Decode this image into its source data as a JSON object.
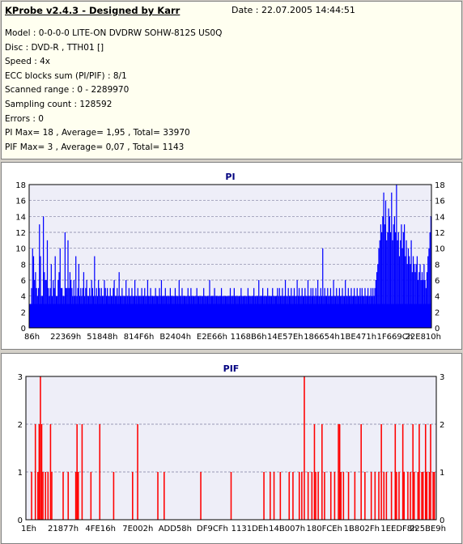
{
  "header": {
    "title": "KProbe v2.4.3 - Designed by Karr",
    "date": "Date : 22.07.2005 14:44:51"
  },
  "info_lines": [
    "Model : 0-0-0-0 LITE-ON DVDRW SOHW-812S  US0Q",
    "Disc : DVD-R , TTH01 []",
    "Speed : 4x",
    "ECC blocks sum (PI/PIF) : 8/1",
    "Scanned range : 0 - 2289970",
    "Sampling count : 128592",
    "Errors : 0",
    "PI Max= 18 , Average= 1,95 , Total= 33970",
    "PIF Max= 3 , Average= 0,07 , Total= 1143"
  ],
  "colors": {
    "pi": "#0000ff",
    "pif": "#ff0000",
    "plot_bg": "#eeeef8",
    "grid": "#8080a0",
    "title": "#000080"
  },
  "chart_data": [
    {
      "type": "bar",
      "title": "PI",
      "ylim": [
        0,
        18
      ],
      "yticks": [
        0,
        2,
        4,
        6,
        8,
        10,
        12,
        14,
        16,
        18
      ],
      "grid": true,
      "xtick_labels": [
        "86h",
        "22369h",
        "51848h",
        "814F6h",
        "B2404h",
        "E2E66h",
        "1168B6h",
        "14E57Eh",
        "186654h",
        "1BE471h",
        "1F669Ch",
        "22E810h"
      ],
      "baseline_y": 3,
      "values": [
        3,
        2,
        5,
        10,
        9,
        6,
        7,
        5,
        4,
        5,
        13,
        9,
        4,
        4,
        14,
        7,
        6,
        6,
        11,
        5,
        4,
        5,
        8,
        4,
        6,
        5,
        9,
        4,
        4,
        6,
        7,
        10,
        5,
        5,
        4,
        4,
        12,
        5,
        5,
        11,
        5,
        7,
        6,
        5,
        4,
        6,
        4,
        9,
        4,
        5,
        8,
        4,
        5,
        4,
        5,
        7,
        4,
        5,
        6,
        4,
        4,
        5,
        4,
        6,
        5,
        4,
        9,
        4,
        5,
        4,
        6,
        5,
        4,
        5,
        4,
        4,
        6,
        5,
        4,
        5,
        4,
        4,
        5,
        4,
        4,
        5,
        6,
        4,
        4,
        5,
        4,
        7,
        4,
        4,
        5,
        4,
        4,
        4,
        6,
        4,
        4,
        5,
        4,
        4,
        5,
        4,
        4,
        6,
        4,
        4,
        5,
        4,
        4,
        4,
        5,
        4,
        4,
        5,
        4,
        4,
        6,
        4,
        4,
        5,
        4,
        4,
        4,
        4,
        5,
        4,
        4,
        4,
        5,
        4,
        6,
        4,
        4,
        4,
        5,
        4,
        4,
        4,
        4,
        5,
        4,
        4,
        4,
        4,
        5,
        4,
        4,
        4,
        6,
        4,
        4,
        5,
        4,
        4,
        4,
        4,
        4,
        5,
        4,
        4,
        5,
        4,
        4,
        4,
        4,
        4,
        5,
        4,
        4,
        4,
        4,
        4,
        4,
        5,
        4,
        4,
        4,
        4,
        4,
        6,
        4,
        4,
        4,
        4,
        5,
        4,
        4,
        4,
        4,
        4,
        4,
        5,
        4,
        4,
        4,
        4,
        4,
        4,
        4,
        4,
        5,
        4,
        4,
        4,
        5,
        4,
        4,
        4,
        4,
        4,
        4,
        5,
        4,
        4,
        4,
        4,
        4,
        4,
        5,
        4,
        4,
        4,
        4,
        4,
        5,
        4,
        4,
        4,
        4,
        6,
        4,
        4,
        4,
        5,
        4,
        4,
        4,
        4,
        5,
        4,
        4,
        4,
        4,
        5,
        4,
        4,
        4,
        4,
        5,
        4,
        5,
        4,
        4,
        5,
        4,
        4,
        6,
        4,
        4,
        5,
        4,
        4,
        5,
        4,
        4,
        5,
        4,
        4,
        6,
        4,
        5,
        4,
        4,
        5,
        4,
        4,
        5,
        4,
        4,
        6,
        4,
        4,
        5,
        4,
        5,
        4,
        4,
        5,
        4,
        6,
        4,
        4,
        5,
        4,
        10,
        4,
        5,
        4,
        4,
        5,
        4,
        4,
        5,
        4,
        4,
        6,
        4,
        4,
        5,
        4,
        4,
        5,
        4,
        4,
        5,
        4,
        4,
        6,
        4,
        4,
        5,
        4,
        4,
        5,
        4,
        4,
        5,
        4,
        4,
        5,
        4,
        4,
        5,
        4,
        5,
        4,
        4,
        5,
        4,
        4,
        5,
        4,
        4,
        5,
        4,
        5,
        4,
        5,
        6,
        7,
        8,
        10,
        11,
        13,
        12,
        14,
        17,
        13,
        16,
        11,
        12,
        15,
        14,
        12,
        17,
        11,
        13,
        14,
        12,
        18,
        11,
        12,
        9,
        11,
        13,
        10,
        12,
        13,
        9,
        11,
        8,
        10,
        9,
        8,
        11,
        7,
        9,
        8,
        7,
        8,
        9,
        6,
        7,
        8,
        6,
        7,
        6,
        8,
        6,
        5,
        7,
        9,
        10,
        12,
        14
      ]
    },
    {
      "type": "bar",
      "title": "PIF",
      "ylim": [
        0,
        3
      ],
      "yticks": [
        0,
        1,
        2,
        3
      ],
      "grid": true,
      "xtick_labels": [
        "1Eh",
        "21877h",
        "4FE16h",
        "7E002h",
        "ADD58h",
        "DF9CFh",
        "1131DEh",
        "14B007h",
        "180FCEh",
        "1B802Fh",
        "1EEDF8h",
        "225BE9h"
      ],
      "values": [
        0,
        0,
        0,
        0,
        1,
        0,
        0,
        2,
        0,
        1,
        2,
        3,
        2,
        1,
        0,
        1,
        0,
        1,
        0,
        2,
        1,
        0,
        0,
        0,
        0,
        0,
        0,
        0,
        0,
        1,
        0,
        0,
        0,
        1,
        0,
        0,
        0,
        0,
        0,
        1,
        2,
        1,
        0,
        0,
        2,
        0,
        0,
        0,
        0,
        0,
        0,
        1,
        0,
        0,
        0,
        0,
        0,
        0,
        2,
        0,
        0,
        0,
        0,
        0,
        0,
        0,
        0,
        0,
        0,
        1,
        0,
        0,
        0,
        0,
        0,
        0,
        0,
        0,
        0,
        0,
        0,
        0,
        0,
        0,
        1,
        0,
        0,
        0,
        2,
        0,
        0,
        0,
        0,
        0,
        0,
        0,
        0,
        0,
        0,
        0,
        0,
        0,
        0,
        0,
        1,
        0,
        0,
        0,
        0,
        1,
        0,
        0,
        0,
        0,
        0,
        0,
        0,
        0,
        0,
        0,
        0,
        0,
        0,
        0,
        0,
        0,
        0,
        0,
        0,
        0,
        0,
        0,
        0,
        0,
        0,
        0,
        0,
        0,
        1,
        0,
        0,
        0,
        0,
        0,
        0,
        0,
        0,
        0,
        0,
        0,
        0,
        0,
        0,
        0,
        0,
        0,
        0,
        0,
        0,
        0,
        0,
        0,
        1,
        0,
        0,
        0,
        0,
        0,
        0,
        0,
        0,
        0,
        0,
        0,
        0,
        0,
        0,
        0,
        0,
        0,
        0,
        0,
        0,
        0,
        0,
        0,
        0,
        0,
        1,
        0,
        0,
        0,
        0,
        1,
        0,
        0,
        1,
        0,
        0,
        0,
        0,
        1,
        0,
        0,
        0,
        0,
        0,
        0,
        1,
        0,
        0,
        1,
        0,
        0,
        0,
        0,
        1,
        0,
        1,
        0,
        3,
        0,
        0,
        1,
        0,
        0,
        1,
        0,
        2,
        1,
        0,
        1,
        0,
        0,
        2,
        0,
        1,
        0,
        0,
        0,
        0,
        1,
        0,
        0,
        1,
        0,
        0,
        2,
        2,
        1,
        0,
        1,
        0,
        0,
        0,
        1,
        0,
        0,
        0,
        0,
        1,
        0,
        0,
        0,
        0,
        2,
        0,
        0,
        1,
        0,
        0,
        0,
        0,
        1,
        0,
        0,
        1,
        0,
        0,
        1,
        0,
        2,
        0,
        1,
        0,
        1,
        0,
        0,
        0,
        1,
        0,
        0,
        2,
        1,
        0,
        1,
        0,
        0,
        2,
        1,
        0,
        0,
        1,
        0,
        1,
        0,
        2,
        1,
        0,
        0,
        1,
        2,
        0,
        1,
        1,
        0,
        2,
        1,
        0,
        1,
        2,
        0,
        1,
        1,
        0
      ]
    }
  ]
}
